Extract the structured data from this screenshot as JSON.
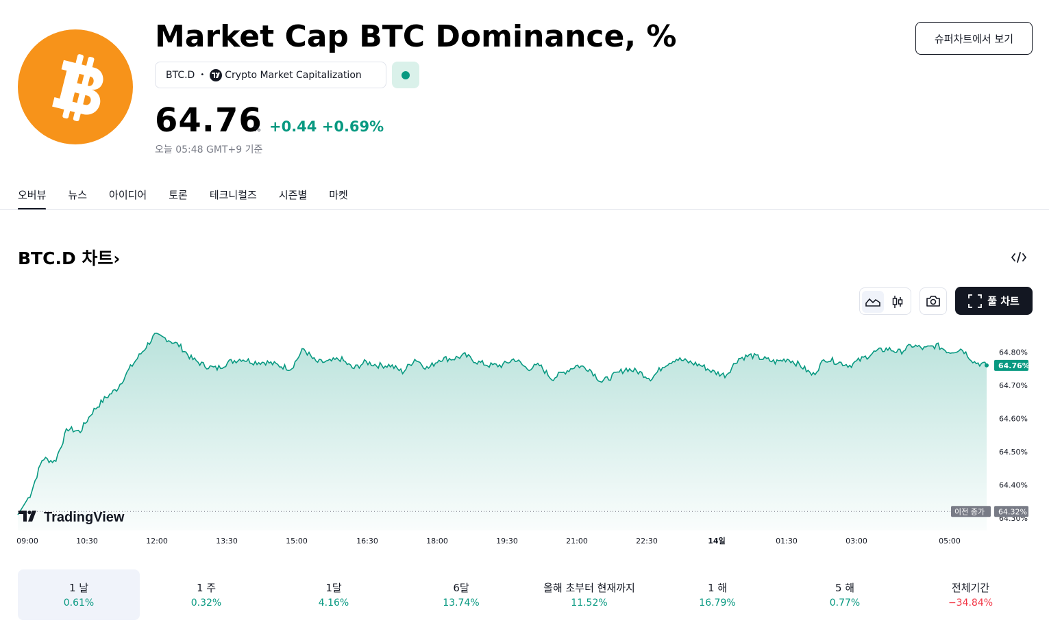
{
  "header": {
    "title": "Market Cap BTC Dominance, %",
    "symbol": "BTC.D",
    "exchange": "Crypto Market Capitalization",
    "price": "64.76",
    "price_unit": "%",
    "change": "+0.44",
    "change_pct": "+0.69%",
    "as_of": "오늘 05:48 GMT+9 기준",
    "supercharts_button": "슈퍼차트에서 보기",
    "logo_icon": "bitcoin-logo",
    "status_color": "#089981"
  },
  "tabs": [
    "오버뷰",
    "뉴스",
    "아이디어",
    "토론",
    "테크니컬즈",
    "시즌별",
    "마켓"
  ],
  "chart_section": {
    "heading": "BTC.D 차트",
    "full_chart_button": "풀 차트",
    "prev_close_label": "이전 종가",
    "watermark": "TradingView"
  },
  "chart_data": {
    "type": "area",
    "line_color": "#089981",
    "x_ticks": [
      "09:00",
      "10:30",
      "12:00",
      "13:30",
      "15:00",
      "16:30",
      "18:00",
      "19:30",
      "21:00",
      "22:30",
      "14일",
      "01:30",
      "03:00",
      "05:00"
    ],
    "y_ticks": [
      "64.80%",
      "64.70%",
      "64.60%",
      "64.50%",
      "64.40%",
      "64.30%"
    ],
    "ylim": [
      64.3,
      64.84
    ],
    "current_value": 64.76,
    "current_label": "64.76%",
    "prev_close": 64.32,
    "prev_close_label": "64.32%",
    "series": [
      {
        "values": [
          64.31,
          64.37,
          64.48,
          64.47,
          64.57,
          64.56,
          64.62,
          64.66,
          64.69,
          64.75,
          64.8,
          64.85,
          64.84,
          64.82,
          64.78,
          64.76,
          64.75,
          64.77,
          64.78,
          64.77,
          64.77,
          64.76,
          64.75,
          64.81,
          64.77,
          64.77,
          64.78,
          64.75,
          64.77,
          64.76,
          64.76,
          64.74,
          64.78,
          64.75,
          64.78,
          64.78,
          64.79,
          64.77,
          64.76,
          64.76,
          64.78,
          64.75,
          64.76,
          64.72,
          64.74,
          64.76,
          64.75,
          64.71,
          64.73,
          64.75,
          64.74,
          64.72,
          64.76,
          64.78,
          64.77,
          64.76,
          64.74,
          64.73,
          64.78,
          64.79,
          64.78,
          64.77,
          64.78,
          64.76,
          64.73,
          64.78,
          64.77,
          64.76,
          64.78,
          64.8,
          64.81,
          64.8,
          64.82,
          64.81,
          64.82,
          64.8,
          64.81,
          64.77,
          64.76
        ]
      }
    ]
  },
  "periods": [
    {
      "label": "1 날",
      "value": "0.61%",
      "positive": true,
      "active": true
    },
    {
      "label": "1 주",
      "value": "0.32%",
      "positive": true,
      "active": false
    },
    {
      "label": "1달",
      "value": "4.16%",
      "positive": true,
      "active": false
    },
    {
      "label": "6달",
      "value": "13.74%",
      "positive": true,
      "active": false
    },
    {
      "label": "올해 초부터 현재까지",
      "value": "11.52%",
      "positive": true,
      "active": false
    },
    {
      "label": "1 해",
      "value": "16.79%",
      "positive": true,
      "active": false
    },
    {
      "label": "5 해",
      "value": "0.77%",
      "positive": true,
      "active": false
    },
    {
      "label": "전체기간",
      "value": "−34.84%",
      "positive": false,
      "active": false
    }
  ],
  "colors": {
    "positive": "#089981",
    "negative": "#f23645"
  }
}
